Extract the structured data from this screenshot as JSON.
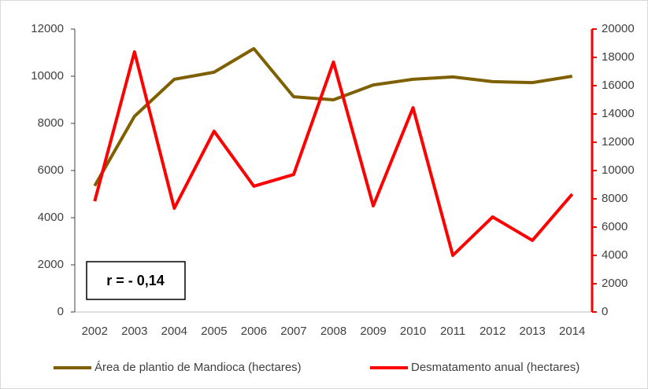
{
  "chart_data": {
    "type": "line",
    "categories": [
      "2002",
      "2003",
      "2004",
      "2005",
      "2006",
      "2007",
      "2008",
      "2009",
      "2010",
      "2011",
      "2012",
      "2013",
      "2014"
    ],
    "series": [
      {
        "name": "Área de plantio de Mandioca (hectares)",
        "color": "#7f6000",
        "axis": "y",
        "values": [
          5350,
          8300,
          9870,
          10170,
          11170,
          9130,
          9000,
          9630,
          9870,
          9970,
          9770,
          9730,
          10000
        ]
      },
      {
        "name": "Desmatamento anual (hectares)",
        "color": "#ff0000",
        "axis": "y2",
        "values": [
          7830,
          18390,
          7330,
          12780,
          8890,
          9720,
          17670,
          7500,
          14440,
          4000,
          6720,
          5060,
          8330
        ]
      }
    ],
    "ylim": [
      0,
      12000
    ],
    "yticks": [
      0,
      2000,
      4000,
      6000,
      8000,
      10000,
      12000
    ],
    "y2lim": [
      0,
      20000
    ],
    "y2ticks": [
      0,
      2000,
      4000,
      6000,
      8000,
      10000,
      12000,
      14000,
      16000,
      18000,
      20000
    ],
    "annotation": "r = - 0,14",
    "legend": "bottom"
  }
}
